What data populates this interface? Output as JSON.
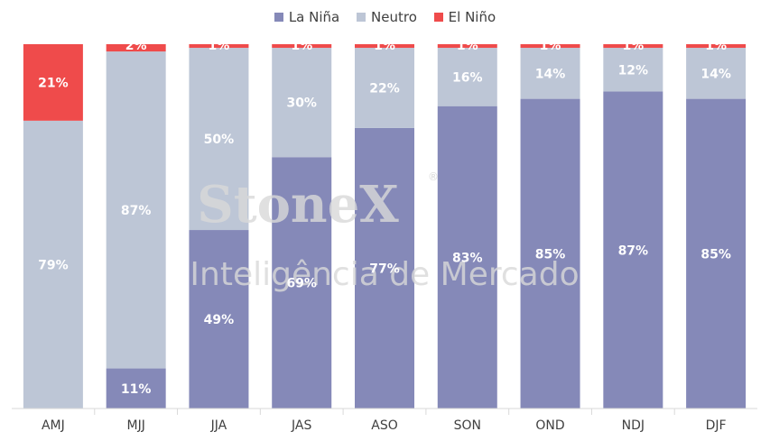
{
  "chart_data": {
    "type": "bar",
    "stacked": true,
    "categories": [
      "AMJ",
      "MJJ",
      "JJA",
      "JAS",
      "ASO",
      "SON",
      "OND",
      "NDJ",
      "DJF"
    ],
    "series": [
      {
        "name": "La Niña",
        "color": "#8589b8",
        "values": [
          0,
          11,
          49,
          69,
          77,
          83,
          85,
          87,
          85
        ],
        "labels": [
          "",
          "11%",
          "49%",
          "69%",
          "77%",
          "83%",
          "85%",
          "87%",
          "85%"
        ]
      },
      {
        "name": "Neutro",
        "color": "#bdc6d6",
        "values": [
          79,
          87,
          50,
          30,
          22,
          16,
          14,
          12,
          14
        ],
        "labels": [
          "79%",
          "87%",
          "50%",
          "30%",
          "22%",
          "16%",
          "14%",
          "12%",
          "14%"
        ]
      },
      {
        "name": "El Niño",
        "color": "#ef4b4b",
        "values": [
          21,
          2,
          1,
          1,
          1,
          1,
          1,
          1,
          1
        ],
        "labels": [
          "21%",
          "2%",
          "1%",
          "1%",
          "1%",
          "1%",
          "1%",
          "1%",
          "1%"
        ]
      }
    ],
    "ylim": [
      0,
      100
    ],
    "legend_position": "top-center",
    "grid": false
  },
  "watermark": {
    "brand": "StoneX",
    "registered_mark": "®",
    "subtitle": "Inteligência de Mercado"
  }
}
